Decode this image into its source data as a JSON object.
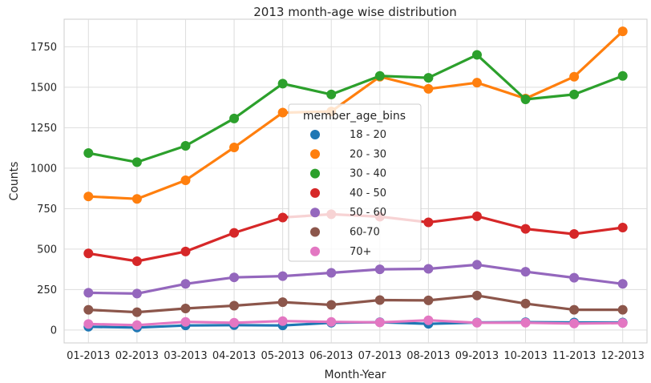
{
  "chart_data": {
    "type": "line",
    "title": "2013 month-age wise distribution",
    "xlabel": "Month-Year",
    "ylabel": "Counts",
    "categories": [
      "01-2013",
      "02-2013",
      "03-2013",
      "04-2013",
      "05-2013",
      "06-2013",
      "07-2013",
      "08-2013",
      "09-2013",
      "10-2013",
      "11-2013",
      "12-2013"
    ],
    "yticks": [
      0,
      250,
      500,
      750,
      1000,
      1250,
      1500,
      1750
    ],
    "ylim": [
      -80,
      1920
    ],
    "grid": true,
    "legend": {
      "title": "member_age_bins",
      "placement": "center"
    },
    "series": [
      {
        "name": "18 - 20",
        "color": "#1f77b4",
        "values": [
          20,
          15,
          28,
          30,
          28,
          45,
          48,
          38,
          46,
          48,
          46,
          46
        ]
      },
      {
        "name": "20 - 30",
        "color": "#ff7f0e",
        "values": [
          825,
          810,
          925,
          1128,
          1343,
          1350,
          1565,
          1490,
          1528,
          1430,
          1565,
          1845
        ]
      },
      {
        "name": "30 - 40",
        "color": "#2ca02c",
        "values": [
          1093,
          1037,
          1138,
          1307,
          1522,
          1455,
          1570,
          1558,
          1700,
          1425,
          1455,
          1570
        ]
      },
      {
        "name": "40 - 50",
        "color": "#d62728",
        "values": [
          473,
          425,
          485,
          600,
          695,
          715,
          700,
          665,
          703,
          625,
          593,
          633
        ]
      },
      {
        "name": "50 - 60",
        "color": "#9467bd",
        "values": [
          230,
          225,
          285,
          325,
          333,
          353,
          375,
          378,
          403,
          360,
          323,
          285
        ]
      },
      {
        "name": "60-70",
        "color": "#8c564b",
        "values": [
          125,
          110,
          133,
          150,
          172,
          155,
          185,
          183,
          213,
          163,
          125,
          125
        ]
      },
      {
        "name": "70+",
        "color": "#e377c2",
        "values": [
          37,
          30,
          50,
          45,
          55,
          50,
          47,
          60,
          45,
          45,
          40,
          43
        ]
      }
    ]
  }
}
